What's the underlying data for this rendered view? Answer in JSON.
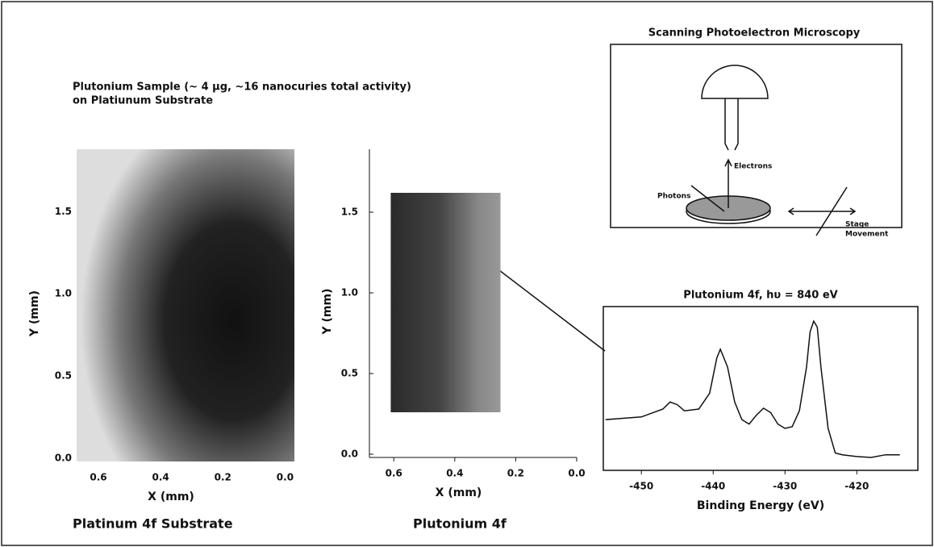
{
  "title": [
    "Plutonium Sample (~ 4 μg, ~16 nanocuries total activity)",
    "on Platiunum Substrate"
  ],
  "diagram": {
    "title": "Scanning Photoelectron Microscopy",
    "photons": "Photons",
    "electrons": "Electrons",
    "stage": [
      "Stage",
      "Movement"
    ]
  },
  "chart_data": [
    {
      "type": "image",
      "title": "Platinum 4f Substrate",
      "xlabel": "X (mm)",
      "ylabel": "Y (mm)",
      "xlim": [
        0.67,
        -0.03
      ],
      "ylim": [
        -0.02,
        1.88
      ],
      "extent": [
        0.67,
        -0.03,
        -0.02,
        1.88
      ],
      "xticks": [
        0.6,
        0.4,
        0.2,
        {
          "value": 0,
          "label": "0.0"
        }
      ],
      "yticks": [
        {
          "value": 0,
          "label": "0.0"
        },
        0.5,
        {
          "value": 1,
          "label": "1.0"
        },
        1.5
      ]
    },
    {
      "type": "image",
      "title": "Plutonium 4f",
      "xlabel": "X (mm)",
      "ylabel": "Y (mm)",
      "xlim": [
        0.68,
        0
      ],
      "ylim": [
        -0.02,
        1.89
      ],
      "extent": [
        0.61,
        0.25,
        0.26,
        1.62
      ],
      "xticks": [
        0.6,
        0.4,
        0.2,
        {
          "value": 0,
          "label": "0.0"
        }
      ],
      "yticks": [
        {
          "value": 0,
          "label": "0.0"
        },
        0.5,
        {
          "value": 1,
          "label": "1.0"
        },
        1.5
      ]
    },
    {
      "type": "line",
      "title": "Plutonium 4f, hυ = 840 eV",
      "xlabel": "Binding Energy (eV)",
      "xlim": [
        -455.3,
        -411.5
      ],
      "xticks": [
        -450,
        -440,
        -430,
        -420
      ],
      "x": [
        -455,
        -450,
        -447,
        -446,
        -445,
        -444,
        -442,
        -440.5,
        -439.5,
        -439,
        -438,
        -437,
        -436,
        -435,
        -434,
        -433,
        -432,
        -431,
        -430,
        -429,
        -428,
        -427,
        -426.5,
        -426,
        -425.5,
        -425,
        -424,
        -423,
        -422,
        -420,
        -418,
        -416,
        -414
      ],
      "values": [
        73,
        76,
        85,
        93,
        90,
        83,
        85,
        103,
        143,
        153,
        133,
        93,
        73,
        68,
        78,
        86,
        81,
        68,
        63,
        65,
        83,
        133,
        173,
        185,
        178,
        133,
        63,
        35,
        33,
        31,
        30,
        33,
        33
      ],
      "color": "#111"
    }
  ]
}
